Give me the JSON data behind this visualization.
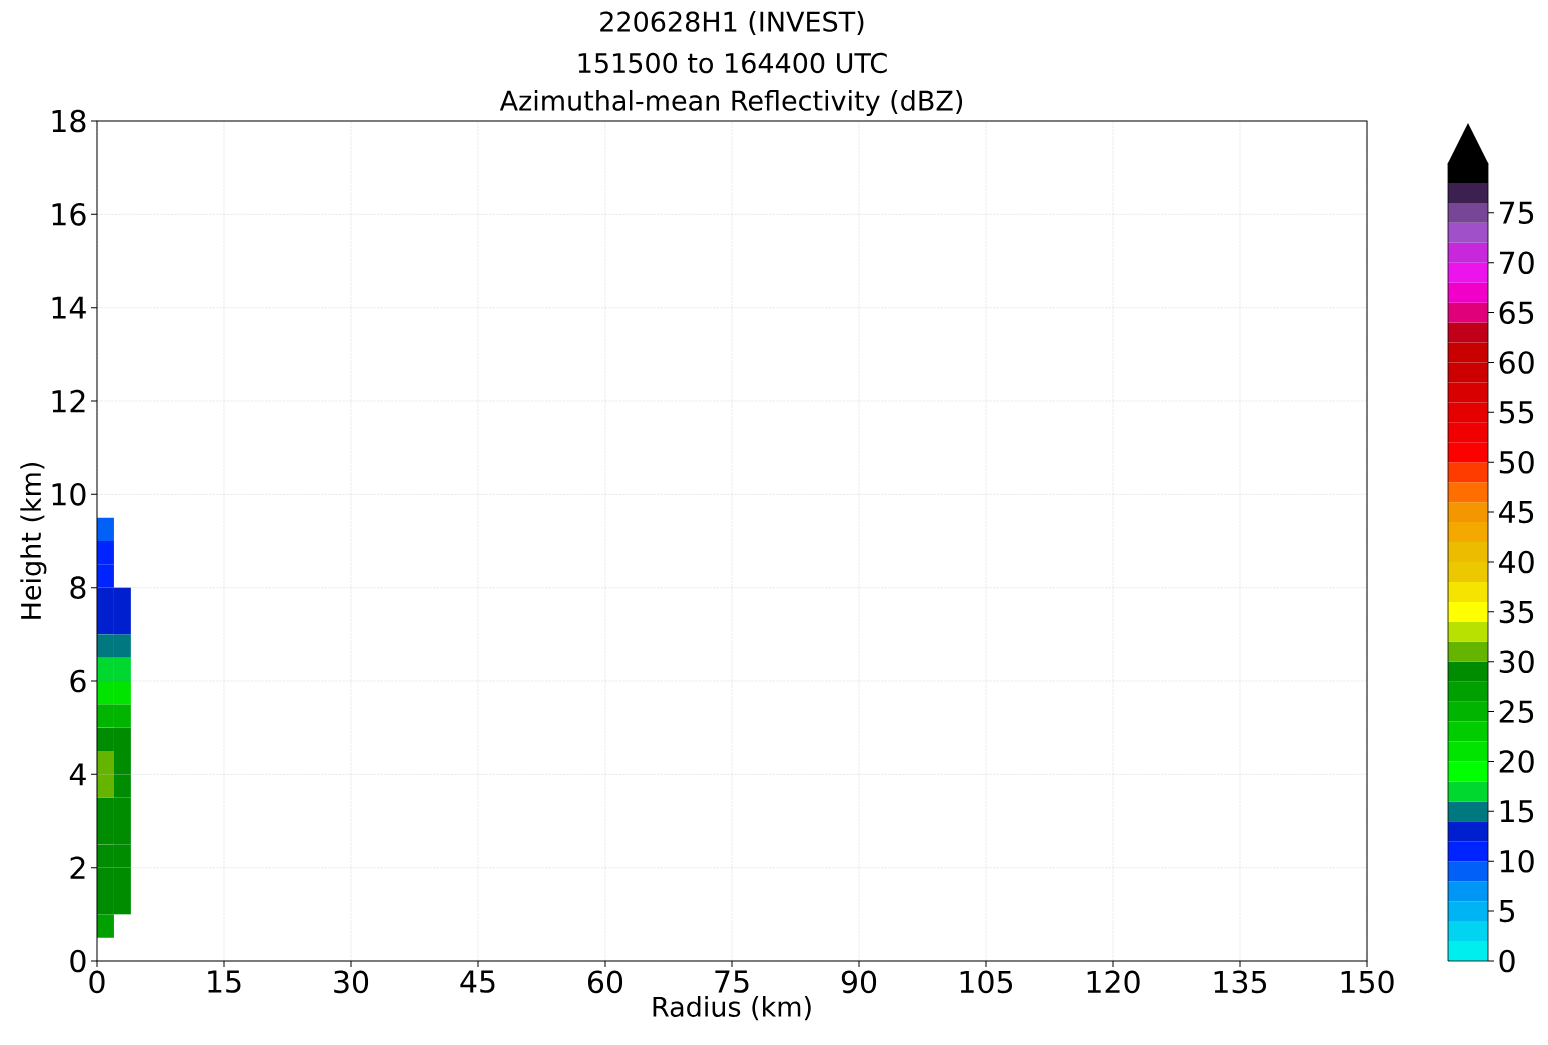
{
  "chart_data": {
    "type": "heatmap",
    "title": "220628H1 (INVEST)",
    "subtitle": "151500 to 164400 UTC",
    "annotations": [
      "Azimuthal-mean Reflectivity (dBZ)"
    ],
    "xlabel": "Radius (km)",
    "ylabel": "Height (km)",
    "xlim": [
      0,
      150
    ],
    "ylim": [
      0,
      18
    ],
    "xticks": [
      0,
      15,
      30,
      45,
      60,
      75,
      90,
      105,
      120,
      135,
      150
    ],
    "yticks": [
      0,
      2,
      4,
      6,
      8,
      10,
      12,
      14,
      16,
      18
    ],
    "grid": true,
    "x": [
      1,
      3
    ],
    "y": [
      0.75,
      1.25,
      1.75,
      2.25,
      2.75,
      3.25,
      3.75,
      4.25,
      4.75,
      5.25,
      5.75,
      6.25,
      6.75,
      7.25,
      7.75,
      8.25,
      8.75,
      9.25
    ],
    "cells": [
      [
        27,
        null
      ],
      [
        29,
        29
      ],
      [
        29,
        29
      ],
      [
        29,
        29
      ],
      [
        29,
        29
      ],
      [
        29,
        29
      ],
      [
        31,
        29
      ],
      [
        31,
        29
      ],
      [
        29,
        29
      ],
      [
        25,
        25
      ],
      [
        21,
        21
      ],
      [
        17,
        17
      ],
      [
        15,
        15
      ],
      [
        13,
        13
      ],
      [
        13,
        13
      ],
      [
        11,
        null
      ],
      [
        11,
        null
      ],
      [
        9,
        null
      ]
    ],
    "clim": [
      0,
      80
    ],
    "cticks": [
      0,
      5,
      10,
      15,
      20,
      25,
      30,
      35,
      40,
      45,
      50,
      55,
      60,
      65,
      70,
      75
    ],
    "colors": [
      "#00eeee",
      "#00d4f0",
      "#00b4f4",
      "#0096f4",
      "#0060f8",
      "#0024ff",
      "#0020d0",
      "#007880",
      "#00d830",
      "#00ff00",
      "#00e400",
      "#00cc00",
      "#00b400",
      "#00a000",
      "#008c00",
      "#64b400",
      "#b8e000",
      "#ffff00",
      "#f4e400",
      "#ecc800",
      "#ecbc00",
      "#f4a800",
      "#f49600",
      "#ff6e00",
      "#ff3c00",
      "#ff0000",
      "#f00000",
      "#e40000",
      "#d80000",
      "#cc0000",
      "#c80000",
      "#c00018",
      "#e0007a",
      "#f000c8",
      "#ec14ec",
      "#c828dc",
      "#a050c8",
      "#784696",
      "#3c2050",
      "#000000"
    ]
  }
}
